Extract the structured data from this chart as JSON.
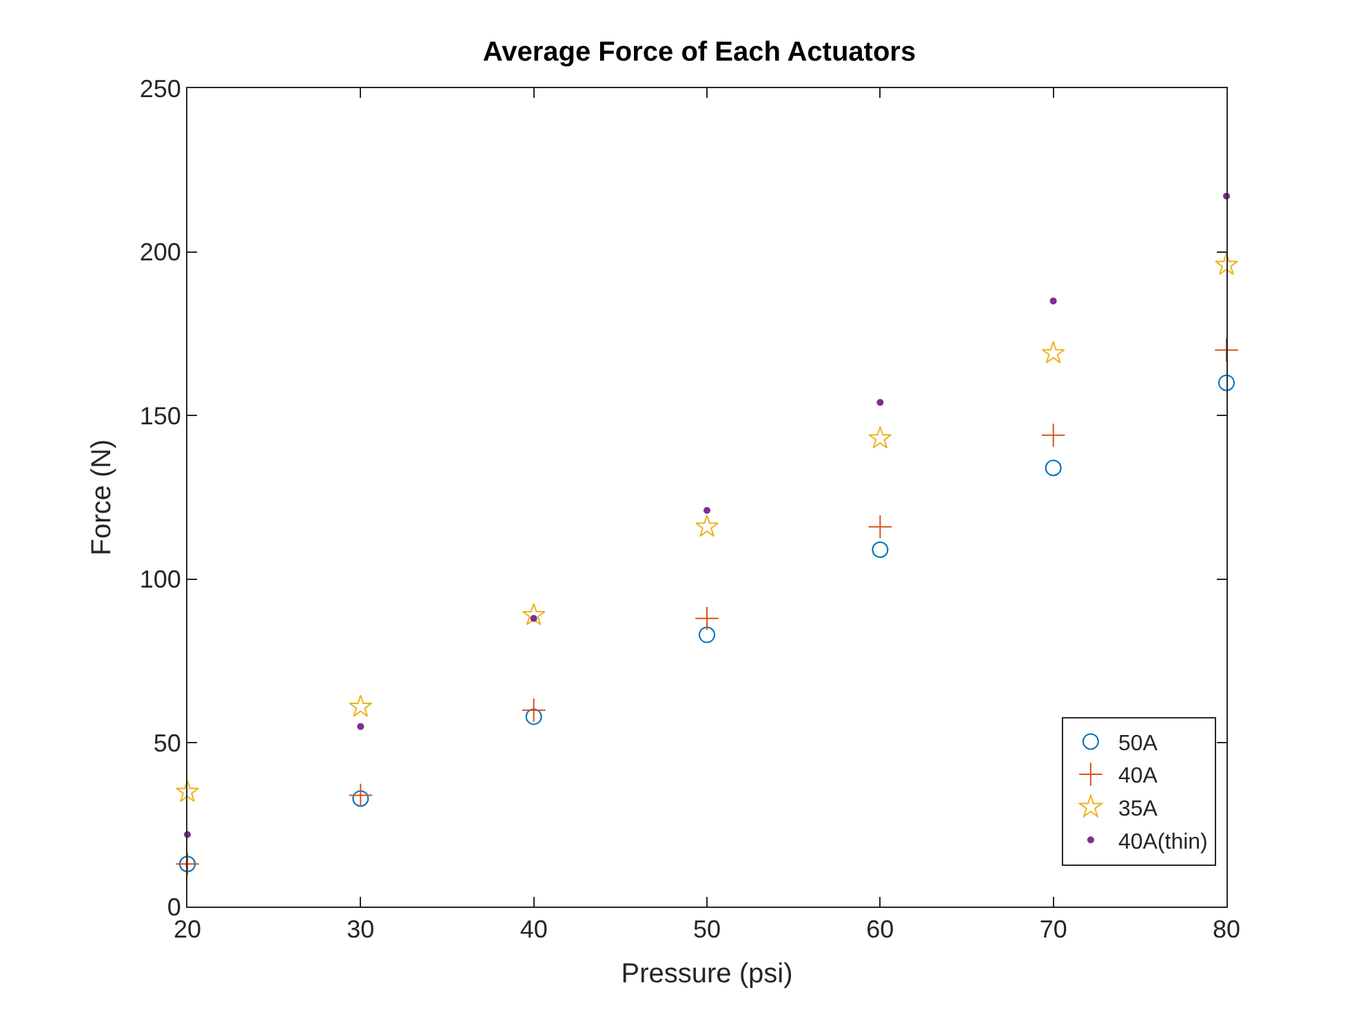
{
  "chart_data": {
    "type": "scatter",
    "title": "Average Force of Each Actuators",
    "xlabel": "Pressure (psi)",
    "ylabel": "Force (N)",
    "x": [
      20,
      30,
      40,
      50,
      60,
      70,
      80
    ],
    "series": [
      {
        "name": "50A",
        "color": "#0072bd",
        "marker": "circle",
        "values": [
          13,
          33,
          58,
          83,
          109,
          134,
          160
        ]
      },
      {
        "name": "40A",
        "color": "#d95319",
        "marker": "cross",
        "values": [
          13,
          34,
          60,
          88,
          116,
          144,
          170
        ]
      },
      {
        "name": "35A",
        "color": "#edb120",
        "marker": "star",
        "values": [
          35,
          61,
          89,
          116,
          143,
          169,
          196
        ]
      },
      {
        "name": "40A(thin)",
        "color": "#7e2f8e",
        "values": [
          22,
          55,
          88,
          121,
          154,
          185,
          217
        ]
      }
    ],
    "xlim": [
      20,
      80
    ],
    "xticks": [
      20,
      30,
      40,
      50,
      60,
      70,
      80
    ],
    "ylim": [
      0,
      250
    ],
    "yticks": [
      0,
      50,
      100,
      150,
      200,
      250
    ],
    "legend": "bottom right"
  }
}
